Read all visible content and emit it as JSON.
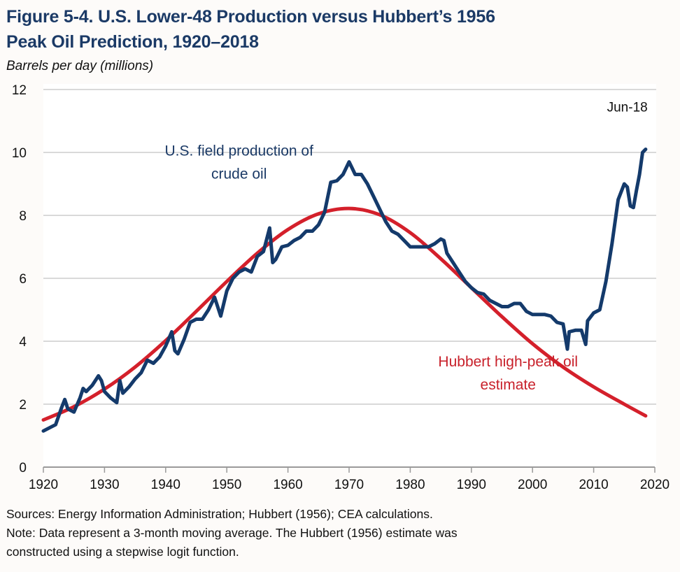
{
  "chart_data": {
    "type": "line",
    "title": "Figure 5-4. U.S. Lower-48 Production versus Hubbert’s 1956 Peak Oil Prediction, 1920–2018",
    "title_lines": [
      "Figure 5-4. U.S. Lower-48 Production versus Hubbert’s 1956",
      "Peak Oil Prediction, 1920–2018"
    ],
    "ylabel": "Barrels per day (millions)",
    "xlabel": "",
    "xlim": [
      1920,
      2020
    ],
    "ylim": [
      0,
      12
    ],
    "x_ticks": [
      1920,
      1930,
      1940,
      1950,
      1960,
      1970,
      1980,
      1990,
      2000,
      2010,
      2020
    ],
    "y_ticks": [
      0,
      2,
      4,
      6,
      8,
      10,
      12
    ],
    "grid": "horizontal",
    "legend": "none (inline annotations)",
    "colors": {
      "production": "#143a6b",
      "hubbert": "#d4202b",
      "grid": "#d9d9d9"
    },
    "annotations": [
      {
        "text_lines": [
          "U.S. field production of",
          "crude oil"
        ],
        "series": "production",
        "x": 1952,
        "y": 9.9
      },
      {
        "text_lines": [
          "Hubbert high-peak oil",
          "estimate"
        ],
        "series": "hubbert",
        "x": 1996,
        "y": 3.2
      },
      {
        "text_lines": [
          "Jun-18"
        ],
        "series": "none",
        "x": 2015.5,
        "y": 11.3
      }
    ],
    "series": [
      {
        "name": "U.S. field production of crude oil",
        "x": [
          1920,
          1921,
          1922,
          1923,
          1923.5,
          1924,
          1925,
          1926,
          1926.5,
          1927,
          1928,
          1929,
          1929.5,
          1930,
          1931,
          1932,
          1932.5,
          1933,
          1934,
          1935,
          1936,
          1937,
          1938,
          1939,
          1940,
          1941,
          1941.5,
          1942,
          1943,
          1944,
          1945,
          1946,
          1947,
          1948,
          1949,
          1950,
          1951,
          1952,
          1953,
          1954,
          1955,
          1956,
          1957,
          1957.5,
          1958,
          1959,
          1960,
          1961,
          1962,
          1963,
          1964,
          1965,
          1966,
          1967,
          1968,
          1969,
          1970,
          1970.5,
          1971,
          1972,
          1973,
          1974,
          1975,
          1976,
          1977,
          1978,
          1979,
          1980,
          1981,
          1982,
          1983,
          1984,
          1985,
          1985.5,
          1986,
          1987,
          1988,
          1989,
          1990,
          1991,
          1992,
          1993,
          1994,
          1995,
          1996,
          1997,
          1998,
          1999,
          2000,
          2001,
          2002,
          2003,
          2004,
          2005,
          2005.7,
          2006,
          2007,
          2008,
          2008.7,
          2009,
          2010,
          2011,
          2012,
          2013,
          2014,
          2015,
          2015.5,
          2016,
          2016.5,
          2017,
          2017.5,
          2018,
          2018.5
        ],
        "values": [
          1.15,
          1.25,
          1.35,
          1.9,
          2.15,
          1.85,
          1.75,
          2.2,
          2.5,
          2.4,
          2.6,
          2.9,
          2.75,
          2.4,
          2.2,
          2.05,
          2.75,
          2.35,
          2.55,
          2.8,
          3.0,
          3.4,
          3.3,
          3.5,
          3.85,
          4.3,
          3.7,
          3.6,
          4.05,
          4.6,
          4.7,
          4.7,
          5.0,
          5.4,
          4.8,
          5.6,
          6.0,
          6.2,
          6.3,
          6.2,
          6.7,
          6.85,
          7.6,
          6.5,
          6.6,
          7.0,
          7.05,
          7.2,
          7.3,
          7.5,
          7.5,
          7.7,
          8.1,
          9.05,
          9.1,
          9.3,
          9.7,
          9.5,
          9.3,
          9.3,
          9.0,
          8.6,
          8.2,
          7.8,
          7.5,
          7.4,
          7.2,
          7.0,
          7.0,
          7.0,
          7.0,
          7.1,
          7.25,
          7.2,
          6.8,
          6.5,
          6.2,
          5.9,
          5.7,
          5.55,
          5.5,
          5.3,
          5.2,
          5.1,
          5.1,
          5.2,
          5.2,
          4.95,
          4.85,
          4.85,
          4.85,
          4.8,
          4.6,
          4.55,
          3.75,
          4.3,
          4.35,
          4.35,
          3.9,
          4.65,
          4.9,
          5.0,
          5.9,
          7.1,
          8.5,
          9.0,
          8.9,
          8.3,
          8.25,
          8.8,
          9.3,
          10.0,
          10.1
        ]
      },
      {
        "name": "Hubbert high-peak oil estimate",
        "x": [
          1920,
          1925,
          1930,
          1935,
          1940,
          1945,
          1950,
          1955,
          1960,
          1965,
          1970,
          1975,
          1980,
          1985,
          1990,
          1995,
          2000,
          2005,
          2010,
          2015,
          2018.5
        ],
        "values": [
          1.5,
          1.92,
          2.48,
          3.18,
          4.02,
          4.95,
          5.9,
          6.8,
          7.55,
          8.05,
          8.22,
          8.02,
          7.45,
          6.62,
          5.7,
          4.78,
          3.92,
          3.18,
          2.55,
          2.0,
          1.63
        ]
      }
    ]
  },
  "footer": {
    "sources": "Sources: Energy Information Administration; Hubbert (1956); CEA calculations.",
    "note_line1": "Note: Data represent a 3-month moving average. The Hubbert (1956) estimate was",
    "note_line2": "constructed using a stepwise logit function."
  }
}
